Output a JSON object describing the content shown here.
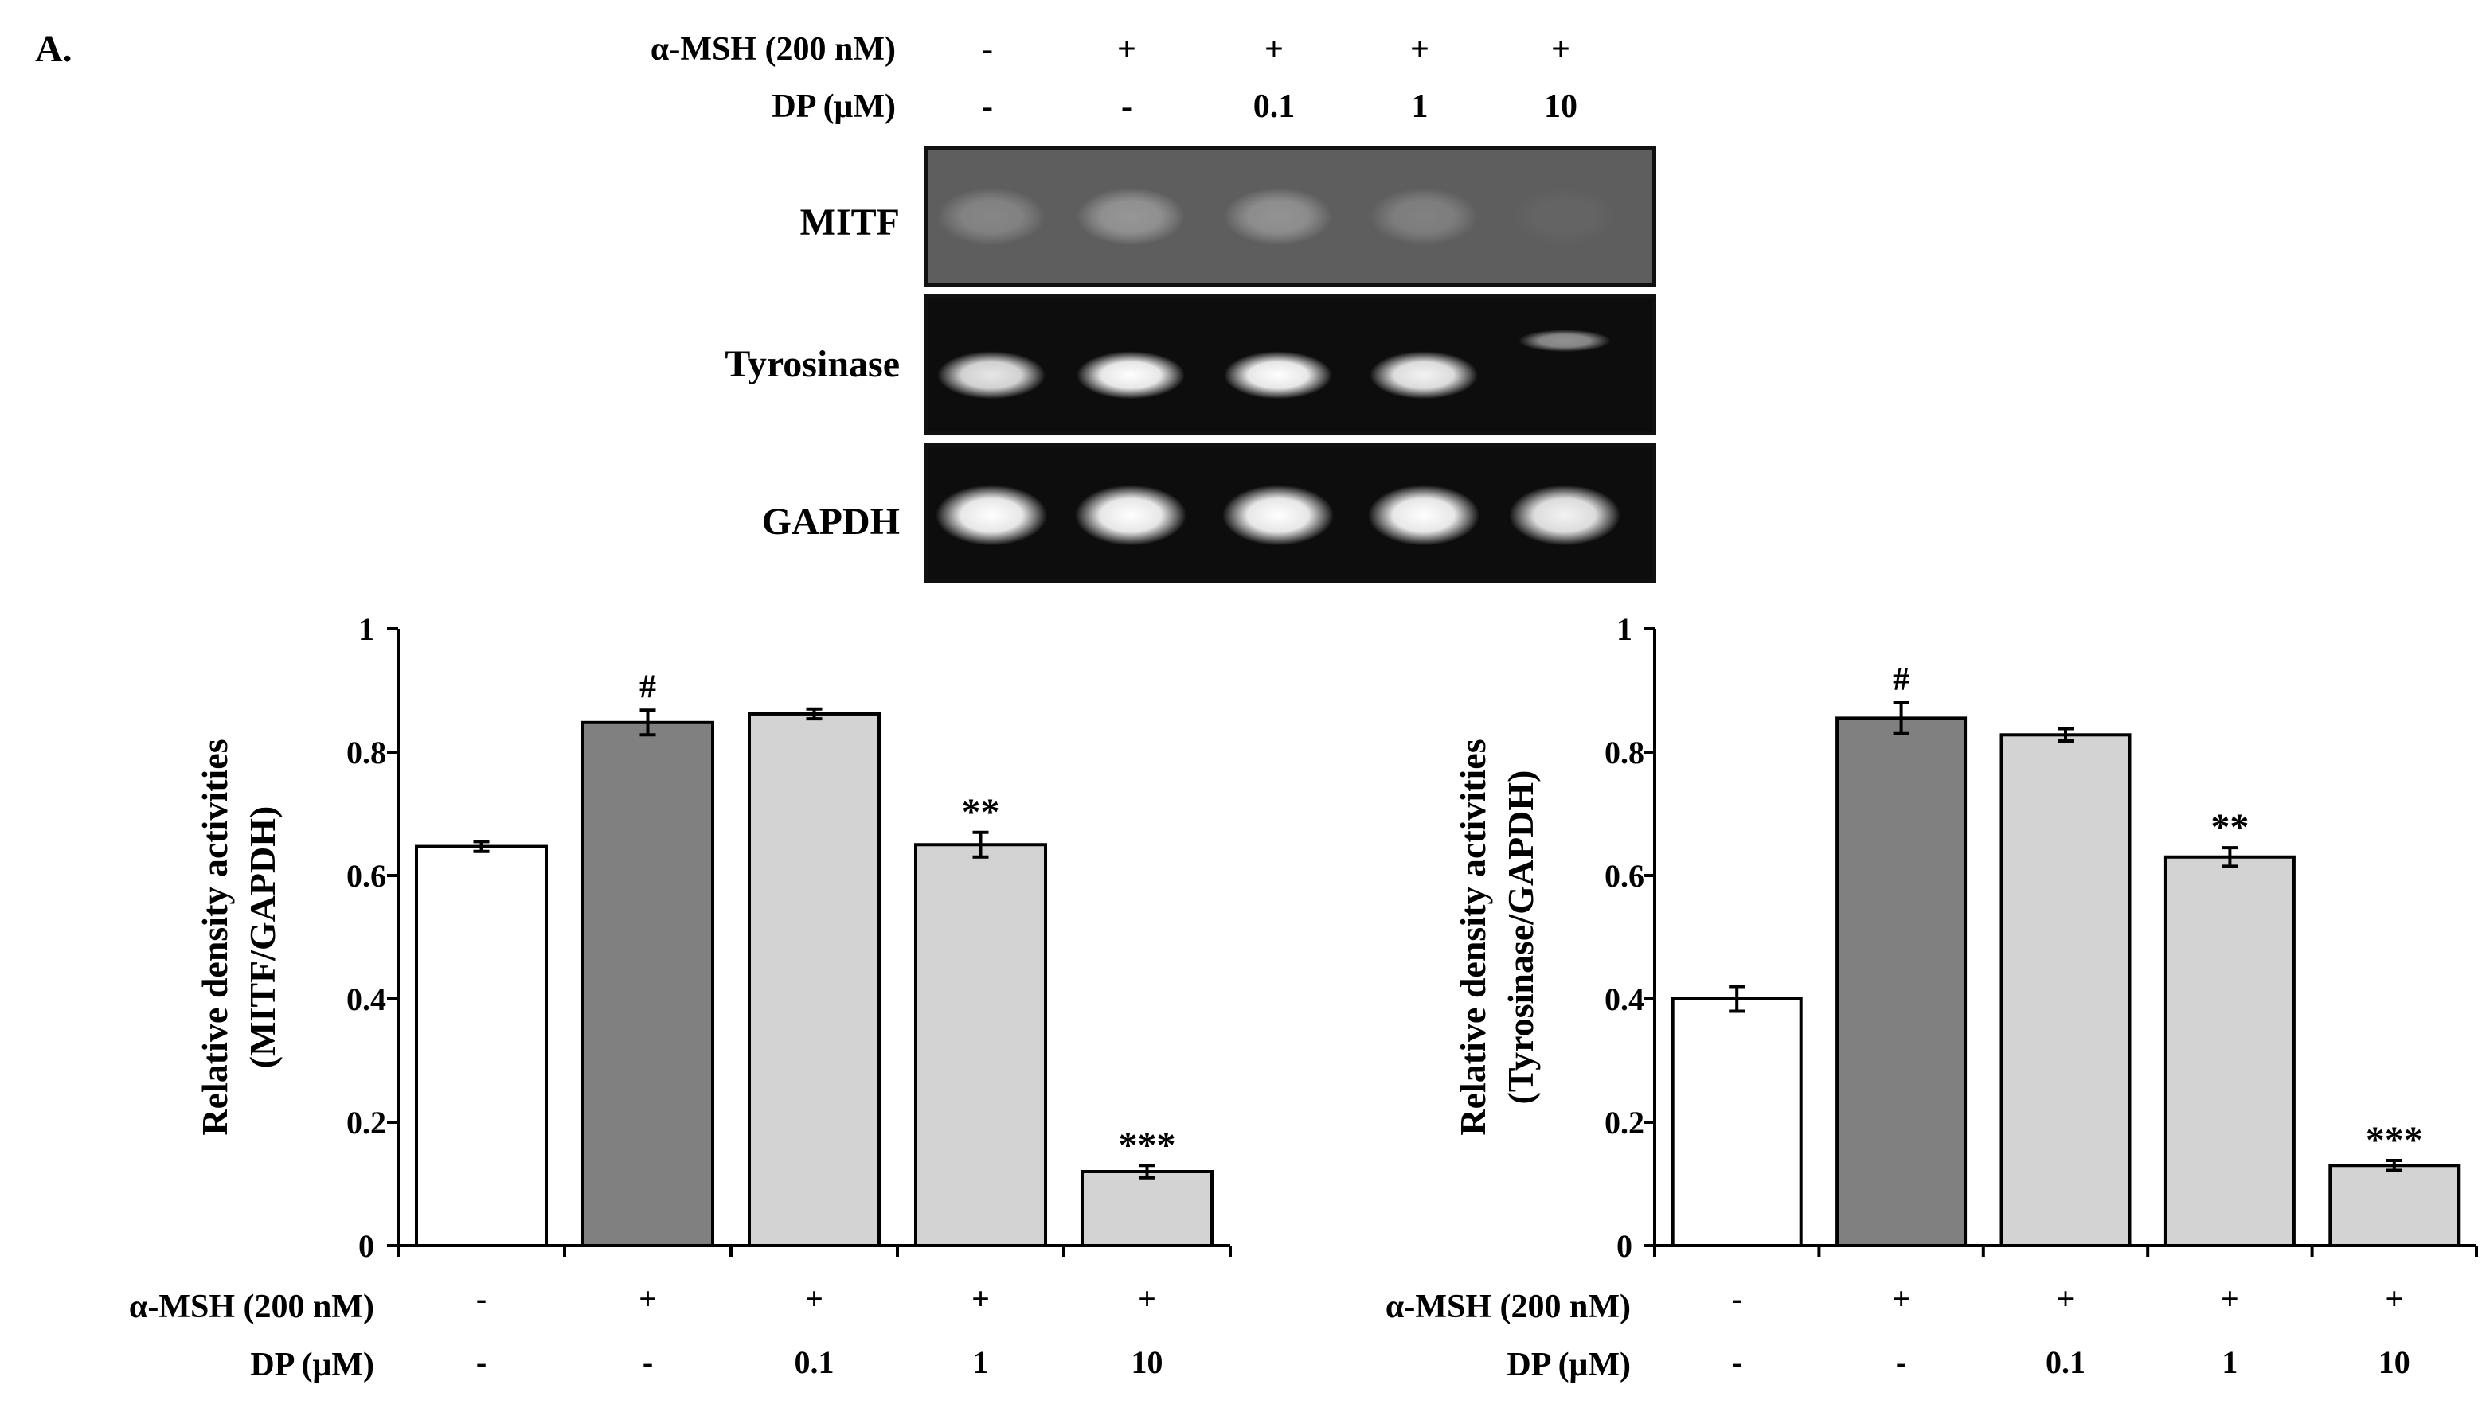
{
  "panel_label": "A.",
  "conditions": {
    "alpha_msh_label": "α-MSH (200 nM)",
    "dp_label": "DP (μM)",
    "alpha_msh": [
      "-",
      "+",
      "+",
      "+",
      "+"
    ],
    "dp": [
      "-",
      "-",
      "0.1",
      "1",
      "10"
    ]
  },
  "gel": {
    "rows": [
      {
        "label": "MITF",
        "background": "#5e5e5e",
        "bands": [
          0.25,
          0.35,
          0.33,
          0.22,
          0.04
        ]
      },
      {
        "label": "Tyrosinase",
        "background": "#0d0d0d",
        "bands": [
          0.9,
          1.0,
          1.0,
          0.95,
          0.55
        ]
      },
      {
        "label": "GAPDH",
        "background": "#0d0d0d",
        "bands": [
          1.0,
          1.0,
          1.0,
          1.0,
          0.95
        ]
      }
    ]
  },
  "colors": {
    "control_bar": "#ffffff",
    "msh_bar": "#808080",
    "treated_bar": "#d3d3d3",
    "axis": "#000000"
  },
  "chart_data": [
    {
      "type": "bar",
      "ylabel_line1": "Relative density activities",
      "ylabel_line2": "(MITF/GAPDH)",
      "ylim": [
        0,
        1
      ],
      "yticks": [
        "0",
        "0.2",
        "0.4",
        "0.6",
        "0.8",
        "1"
      ],
      "values": [
        0.647,
        0.848,
        0.862,
        0.65,
        0.12
      ],
      "errors": [
        0.008,
        0.02,
        0.008,
        0.02,
        0.01
      ],
      "annotations": [
        "",
        "#",
        "",
        "**",
        "***"
      ],
      "x_conditions": {
        "alpha_msh_label": "α-MSH (200 nM)",
        "dp_label": "DP (μM)",
        "alpha_msh": [
          "-",
          "+",
          "+",
          "+",
          "+"
        ],
        "dp": [
          "-",
          "-",
          "0.1",
          "1",
          "10"
        ]
      }
    },
    {
      "type": "bar",
      "ylabel_line1": "Relative density activities",
      "ylabel_line2": "(Tyrosinase/GAPDH)",
      "ylim": [
        0,
        1
      ],
      "yticks": [
        "0",
        "0.2",
        "0.4",
        "0.6",
        "0.8",
        "1"
      ],
      "values": [
        0.4,
        0.855,
        0.828,
        0.63,
        0.13
      ],
      "errors": [
        0.02,
        0.025,
        0.01,
        0.015,
        0.008
      ],
      "annotations": [
        "",
        "#",
        "",
        "**",
        "***"
      ],
      "x_conditions": {
        "alpha_msh_label": "α-MSH (200 nM)",
        "dp_label": "DP (μM)",
        "alpha_msh": [
          "-",
          "+",
          "+",
          "+",
          "+"
        ],
        "dp": [
          "-",
          "-",
          "0.1",
          "1",
          "10"
        ]
      }
    }
  ]
}
